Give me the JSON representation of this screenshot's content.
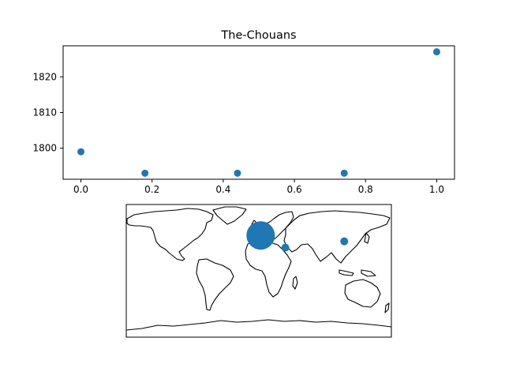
{
  "chart_data": [
    {
      "type": "scatter",
      "title": "The-Chouans",
      "x": [
        0.0,
        0.18,
        0.44,
        0.74,
        1.0
      ],
      "y": [
        1799,
        1793,
        1793,
        1793,
        1827
      ],
      "xlim": [
        -0.05,
        1.05
      ],
      "ylim": [
        1791.3,
        1828.7
      ],
      "xticks": [
        "0.0",
        "0.2",
        "0.4",
        "0.6",
        "0.8",
        "1.0"
      ],
      "yticks": [
        "1800",
        "1810",
        "1820"
      ],
      "marker_color": "#1f77b4",
      "grid": false
    },
    {
      "type": "scatter",
      "projection": "PlateCarree world map",
      "points": [
        {
          "lon": 2.5,
          "lat": 48.0,
          "size": "large"
        },
        {
          "lon": 12.0,
          "lat": 56.0,
          "size": "small"
        },
        {
          "lon": 36.0,
          "lat": 31.5,
          "size": "small"
        },
        {
          "lon": 116.0,
          "lat": 40.0,
          "size": "small"
        }
      ],
      "marker_color": "#1f77b4"
    }
  ]
}
